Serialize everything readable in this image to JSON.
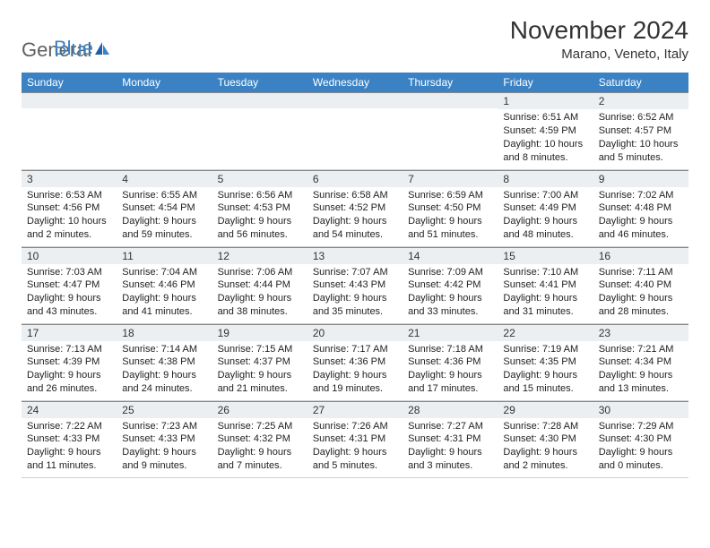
{
  "logo": {
    "text1": "General",
    "text2": "Blue"
  },
  "title": "November 2024",
  "location": "Marano, Veneto, Italy",
  "weekdays": [
    "Sunday",
    "Monday",
    "Tuesday",
    "Wednesday",
    "Thursday",
    "Friday",
    "Saturday"
  ],
  "colors": {
    "header_bg": "#3b82c4",
    "header_fg": "#ffffff",
    "daynum_bg": "#eceff1",
    "text": "#222222",
    "border": "#888888"
  },
  "weeks": [
    [
      null,
      null,
      null,
      null,
      null,
      {
        "n": "1",
        "sr": "6:51 AM",
        "ss": "4:59 PM",
        "dl": "10 hours and 8 minutes."
      },
      {
        "n": "2",
        "sr": "6:52 AM",
        "ss": "4:57 PM",
        "dl": "10 hours and 5 minutes."
      }
    ],
    [
      {
        "n": "3",
        "sr": "6:53 AM",
        "ss": "4:56 PM",
        "dl": "10 hours and 2 minutes."
      },
      {
        "n": "4",
        "sr": "6:55 AM",
        "ss": "4:54 PM",
        "dl": "9 hours and 59 minutes."
      },
      {
        "n": "5",
        "sr": "6:56 AM",
        "ss": "4:53 PM",
        "dl": "9 hours and 56 minutes."
      },
      {
        "n": "6",
        "sr": "6:58 AM",
        "ss": "4:52 PM",
        "dl": "9 hours and 54 minutes."
      },
      {
        "n": "7",
        "sr": "6:59 AM",
        "ss": "4:50 PM",
        "dl": "9 hours and 51 minutes."
      },
      {
        "n": "8",
        "sr": "7:00 AM",
        "ss": "4:49 PM",
        "dl": "9 hours and 48 minutes."
      },
      {
        "n": "9",
        "sr": "7:02 AM",
        "ss": "4:48 PM",
        "dl": "9 hours and 46 minutes."
      }
    ],
    [
      {
        "n": "10",
        "sr": "7:03 AM",
        "ss": "4:47 PM",
        "dl": "9 hours and 43 minutes."
      },
      {
        "n": "11",
        "sr": "7:04 AM",
        "ss": "4:46 PM",
        "dl": "9 hours and 41 minutes."
      },
      {
        "n": "12",
        "sr": "7:06 AM",
        "ss": "4:44 PM",
        "dl": "9 hours and 38 minutes."
      },
      {
        "n": "13",
        "sr": "7:07 AM",
        "ss": "4:43 PM",
        "dl": "9 hours and 35 minutes."
      },
      {
        "n": "14",
        "sr": "7:09 AM",
        "ss": "4:42 PM",
        "dl": "9 hours and 33 minutes."
      },
      {
        "n": "15",
        "sr": "7:10 AM",
        "ss": "4:41 PM",
        "dl": "9 hours and 31 minutes."
      },
      {
        "n": "16",
        "sr": "7:11 AM",
        "ss": "4:40 PM",
        "dl": "9 hours and 28 minutes."
      }
    ],
    [
      {
        "n": "17",
        "sr": "7:13 AM",
        "ss": "4:39 PM",
        "dl": "9 hours and 26 minutes."
      },
      {
        "n": "18",
        "sr": "7:14 AM",
        "ss": "4:38 PM",
        "dl": "9 hours and 24 minutes."
      },
      {
        "n": "19",
        "sr": "7:15 AM",
        "ss": "4:37 PM",
        "dl": "9 hours and 21 minutes."
      },
      {
        "n": "20",
        "sr": "7:17 AM",
        "ss": "4:36 PM",
        "dl": "9 hours and 19 minutes."
      },
      {
        "n": "21",
        "sr": "7:18 AM",
        "ss": "4:36 PM",
        "dl": "9 hours and 17 minutes."
      },
      {
        "n": "22",
        "sr": "7:19 AM",
        "ss": "4:35 PM",
        "dl": "9 hours and 15 minutes."
      },
      {
        "n": "23",
        "sr": "7:21 AM",
        "ss": "4:34 PM",
        "dl": "9 hours and 13 minutes."
      }
    ],
    [
      {
        "n": "24",
        "sr": "7:22 AM",
        "ss": "4:33 PM",
        "dl": "9 hours and 11 minutes."
      },
      {
        "n": "25",
        "sr": "7:23 AM",
        "ss": "4:33 PM",
        "dl": "9 hours and 9 minutes."
      },
      {
        "n": "26",
        "sr": "7:25 AM",
        "ss": "4:32 PM",
        "dl": "9 hours and 7 minutes."
      },
      {
        "n": "27",
        "sr": "7:26 AM",
        "ss": "4:31 PM",
        "dl": "9 hours and 5 minutes."
      },
      {
        "n": "28",
        "sr": "7:27 AM",
        "ss": "4:31 PM",
        "dl": "9 hours and 3 minutes."
      },
      {
        "n": "29",
        "sr": "7:28 AM",
        "ss": "4:30 PM",
        "dl": "9 hours and 2 minutes."
      },
      {
        "n": "30",
        "sr": "7:29 AM",
        "ss": "4:30 PM",
        "dl": "9 hours and 0 minutes."
      }
    ]
  ],
  "labels": {
    "sunrise": "Sunrise: ",
    "sunset": "Sunset: ",
    "daylight": "Daylight: "
  }
}
